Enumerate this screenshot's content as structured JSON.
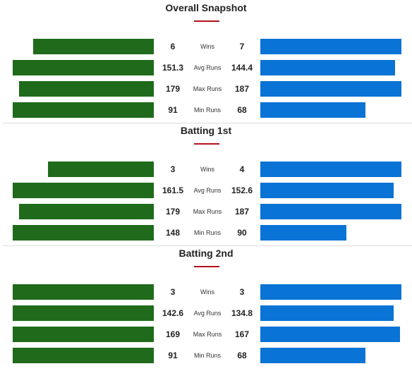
{
  "colors": {
    "team_a": "#1f6b1b",
    "team_b": "#0a73d6",
    "accent": "#b5121b"
  },
  "sections": [
    {
      "title": "Overall Snapshot",
      "rows": [
        {
          "label": "Wins",
          "left": "6",
          "right": "7",
          "left_val": 6,
          "right_val": 7
        },
        {
          "label": "Avg Runs",
          "left": "151.3",
          "right": "144.4",
          "left_val": 151.3,
          "right_val": 144.4
        },
        {
          "label": "Max Runs",
          "left": "179",
          "right": "187",
          "left_val": 179,
          "right_val": 187
        },
        {
          "label": "Min Runs",
          "left": "91",
          "right": "68",
          "left_val": 91,
          "right_val": 68
        }
      ]
    },
    {
      "title": "Batting 1st",
      "rows": [
        {
          "label": "Wins",
          "left": "3",
          "right": "4",
          "left_val": 3,
          "right_val": 4
        },
        {
          "label": "Avg Runs",
          "left": "161.5",
          "right": "152.6",
          "left_val": 161.5,
          "right_val": 152.6
        },
        {
          "label": "Max Runs",
          "left": "179",
          "right": "187",
          "left_val": 179,
          "right_val": 187
        },
        {
          "label": "Min Runs",
          "left": "148",
          "right": "90",
          "left_val": 148,
          "right_val": 90
        }
      ]
    },
    {
      "title": "Batting 2nd",
      "rows": [
        {
          "label": "Wins",
          "left": "3",
          "right": "3",
          "left_val": 3,
          "right_val": 3
        },
        {
          "label": "Avg Runs",
          "left": "142.6",
          "right": "134.8",
          "left_val": 142.6,
          "right_val": 134.8
        },
        {
          "label": "Max Runs",
          "left": "169",
          "right": "167",
          "left_val": 169,
          "right_val": 167
        },
        {
          "label": "Min Runs",
          "left": "91",
          "right": "68",
          "left_val": 91,
          "right_val": 68
        }
      ]
    }
  ]
}
